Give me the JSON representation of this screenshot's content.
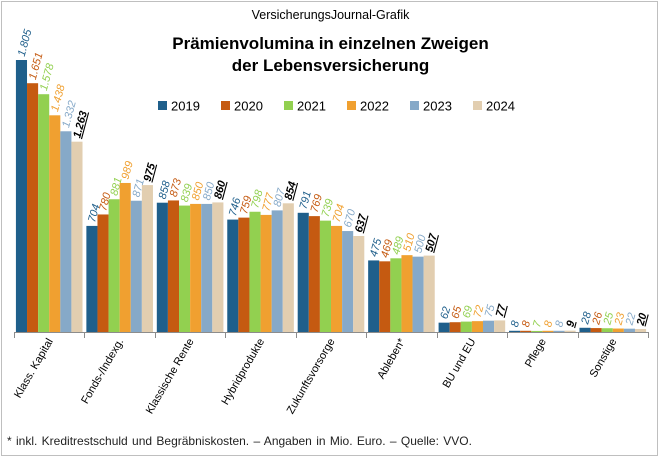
{
  "source_label": "VersicherungsJournal-Grafik",
  "footnote": "* inkl. Kreditrestschuld und Begräbniskosten. – Angaben in Mio. Euro. – Quelle: VVO.",
  "chart_data": {
    "type": "bar",
    "title": "Prämienvolumina  in einzelnen  Zweigen",
    "subtitle": "der Lebensversicherung",
    "xlabel": "",
    "ylabel": "",
    "ylim": [
      0,
      1805
    ],
    "grid": false,
    "legend_position": "top",
    "categories": [
      "Klass. Kapital",
      "Fonds-/Indexg.",
      "Klassische Rente",
      "Hybridprodukte",
      "Zukunftsvorsorge",
      "Ableben*",
      "BU und EU",
      "Pflege",
      "Sonstige"
    ],
    "series": [
      {
        "name": "2019",
        "color": "#1f5f8b",
        "values": [
          1805,
          704,
          858,
          746,
          791,
          475,
          62,
          8,
          28
        ],
        "labels": [
          "1.805",
          "704",
          "858",
          "746",
          "791",
          "475",
          "62",
          "8",
          "28"
        ]
      },
      {
        "name": "2020",
        "color": "#c55a11",
        "values": [
          1651,
          780,
          873,
          759,
          769,
          469,
          65,
          8,
          26
        ],
        "labels": [
          "1.651",
          "780",
          "873",
          "759",
          "769",
          "469",
          "65",
          "8",
          "26"
        ]
      },
      {
        "name": "2021",
        "color": "#92d050",
        "values": [
          1578,
          881,
          839,
          798,
          739,
          489,
          69,
          7,
          25
        ],
        "labels": [
          "1.578",
          "881",
          "839",
          "798",
          "739",
          "489",
          "69",
          "7",
          "25"
        ]
      },
      {
        "name": "2022",
        "color": "#f0a030",
        "values": [
          1438,
          989,
          850,
          777,
          704,
          510,
          72,
          8,
          23
        ],
        "labels": [
          "1.438",
          "989",
          "850",
          "777",
          "704",
          "510",
          "72",
          "8",
          "23"
        ]
      },
      {
        "name": "2023",
        "color": "#86a9c8",
        "values": [
          1332,
          871,
          850,
          807,
          670,
          500,
          75,
          8,
          22
        ],
        "labels": [
          "1.332",
          "871",
          "850",
          "807",
          "670",
          "500",
          "75",
          "8",
          "22"
        ]
      },
      {
        "name": "2024",
        "color": "#e2ceb0",
        "values": [
          1263,
          975,
          860,
          854,
          637,
          507,
          77,
          9,
          20
        ],
        "labels": [
          "1.263",
          "975",
          "860",
          "854",
          "637",
          "507",
          "77",
          "9",
          "20"
        ]
      }
    ],
    "highlight_series": "2024"
  }
}
